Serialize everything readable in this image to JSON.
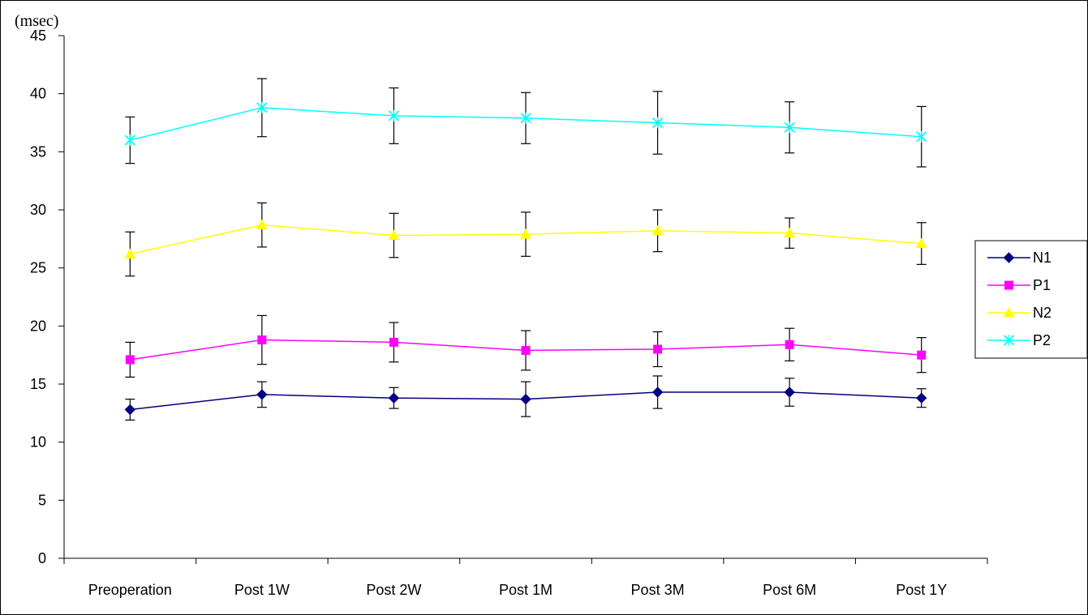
{
  "chart_data": {
    "type": "line",
    "title": "",
    "xlabel": "",
    "ylabel": "(msec)",
    "ylim": [
      0,
      45
    ],
    "yticks": [
      0,
      5,
      10,
      15,
      20,
      25,
      30,
      35,
      40,
      45
    ],
    "grid": false,
    "legend_position": "right",
    "error_bars": true,
    "categories": [
      "Preoperation",
      "Post 1W",
      "Post 2W",
      "Post 1M",
      "Post 3M",
      "Post 6M",
      "Post 1Y"
    ],
    "series": [
      {
        "name": "N1",
        "color": "#000080",
        "marker": "diamond",
        "values": [
          12.8,
          14.1,
          13.8,
          13.7,
          14.3,
          14.3,
          13.8
        ],
        "error": [
          0.9,
          1.1,
          0.9,
          1.5,
          1.4,
          1.2,
          0.8
        ]
      },
      {
        "name": "P1",
        "color": "#ff00ff",
        "marker": "square",
        "values": [
          17.1,
          18.8,
          18.6,
          17.9,
          18.0,
          18.4,
          17.5
        ],
        "error": [
          1.5,
          2.1,
          1.7,
          1.7,
          1.5,
          1.4,
          1.5
        ]
      },
      {
        "name": "N2",
        "color": "#ffff00",
        "marker": "triangle",
        "values": [
          26.2,
          28.7,
          27.8,
          27.9,
          28.2,
          28.0,
          27.1
        ],
        "error": [
          1.9,
          1.9,
          1.9,
          1.9,
          1.8,
          1.3,
          1.8
        ]
      },
      {
        "name": "P2",
        "color": "#00ffff",
        "marker": "x",
        "values": [
          36.0,
          38.8,
          38.1,
          37.9,
          37.5,
          37.1,
          36.3
        ],
        "error": [
          2.0,
          2.5,
          2.4,
          2.2,
          2.7,
          2.2,
          2.6
        ]
      }
    ]
  }
}
